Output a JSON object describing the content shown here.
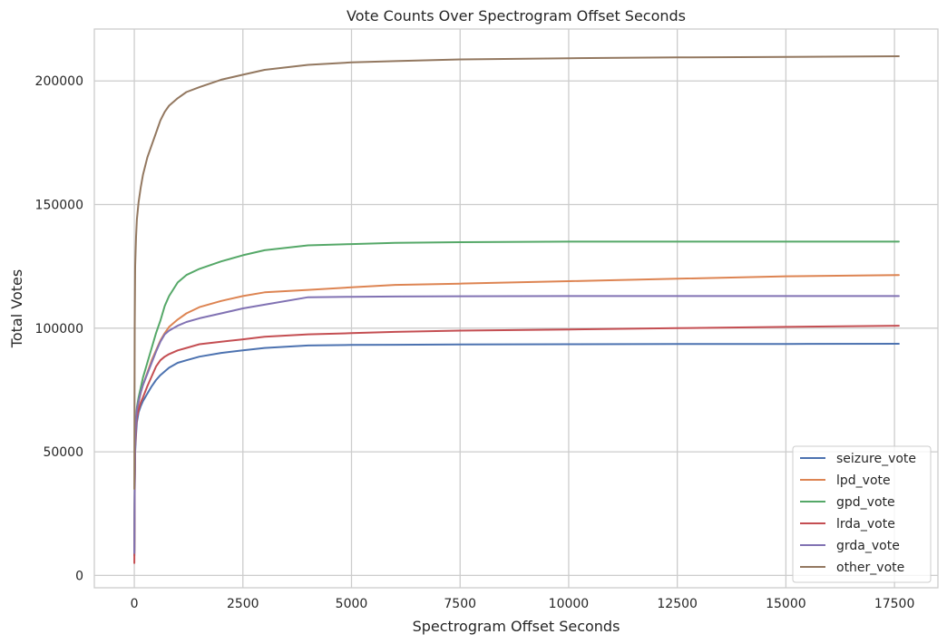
{
  "chart_data": {
    "type": "line",
    "title": "Vote Counts Over Spectrogram Offset Seconds",
    "xlabel": "Spectrogram Offset Seconds",
    "ylabel": "Total Votes",
    "xlim": [
      -920,
      18500
    ],
    "ylim": [
      -5000,
      221000
    ],
    "xticks": [
      0,
      2500,
      5000,
      7500,
      10000,
      12500,
      15000,
      17500
    ],
    "yticks": [
      0,
      50000,
      100000,
      150000,
      200000
    ],
    "grid": true,
    "legend_position": "lower-right",
    "x": [
      0,
      10,
      20,
      40,
      60,
      100,
      150,
      200,
      300,
      400,
      500,
      600,
      700,
      800,
      1000,
      1200,
      1500,
      2000,
      2500,
      3000,
      4000,
      5000,
      6000,
      7500,
      10000,
      12500,
      15000,
      17600
    ],
    "series": [
      {
        "name": "seizure_vote",
        "color": "#4c72b0",
        "values": [
          8000,
          35000,
          50000,
          57000,
          62000,
          66000,
          68500,
          70500,
          73500,
          76500,
          79000,
          81000,
          82500,
          84000,
          86000,
          87000,
          88500,
          90000,
          91000,
          92000,
          93000,
          93200,
          93300,
          93400,
          93500,
          93600,
          93600,
          93700
        ]
      },
      {
        "name": "lpd_vote",
        "color": "#dd8452",
        "values": [
          9000,
          37000,
          55000,
          62000,
          66000,
          70000,
          74000,
          77000,
          82000,
          87000,
          91000,
          95000,
          98000,
          100500,
          103500,
          106000,
          108500,
          111000,
          113000,
          114500,
          115500,
          116500,
          117500,
          118000,
          119000,
          120000,
          121000,
          121500
        ]
      },
      {
        "name": "gpd_vote",
        "color": "#55a868",
        "values": [
          10000,
          40000,
          57000,
          64000,
          68000,
          72000,
          76000,
          80000,
          86000,
          92000,
          98000,
          103000,
          109000,
          113000,
          118500,
          121500,
          124000,
          127000,
          129500,
          131500,
          133500,
          134000,
          134500,
          134800,
          135000,
          135000,
          135000,
          135000
        ]
      },
      {
        "name": "lrda_vote",
        "color": "#c44e52",
        "values": [
          5000,
          33000,
          52000,
          60000,
          64000,
          67000,
          70000,
          72000,
          76500,
          80500,
          84500,
          87000,
          88500,
          89500,
          91000,
          92000,
          93500,
          94500,
          95500,
          96500,
          97500,
          98000,
          98500,
          99000,
          99500,
          100000,
          100500,
          101000
        ]
      },
      {
        "name": "grda_vote",
        "color": "#8172b3",
        "values": [
          9000,
          38000,
          56000,
          63000,
          67000,
          70500,
          74000,
          77000,
          81500,
          86000,
          90500,
          94500,
          97500,
          99000,
          101000,
          102500,
          104000,
          106000,
          108000,
          109500,
          112500,
          112700,
          112800,
          112900,
          113000,
          113000,
          113000,
          113000
        ]
      },
      {
        "name": "other_vote",
        "color": "#937860",
        "values": [
          35000,
          100000,
          125000,
          137000,
          144000,
          151000,
          157000,
          162000,
          169000,
          174000,
          179000,
          184000,
          187500,
          190000,
          193000,
          195500,
          197500,
          200500,
          202500,
          204500,
          206500,
          207500,
          208000,
          208700,
          209200,
          209500,
          209700,
          210000
        ]
      }
    ]
  }
}
